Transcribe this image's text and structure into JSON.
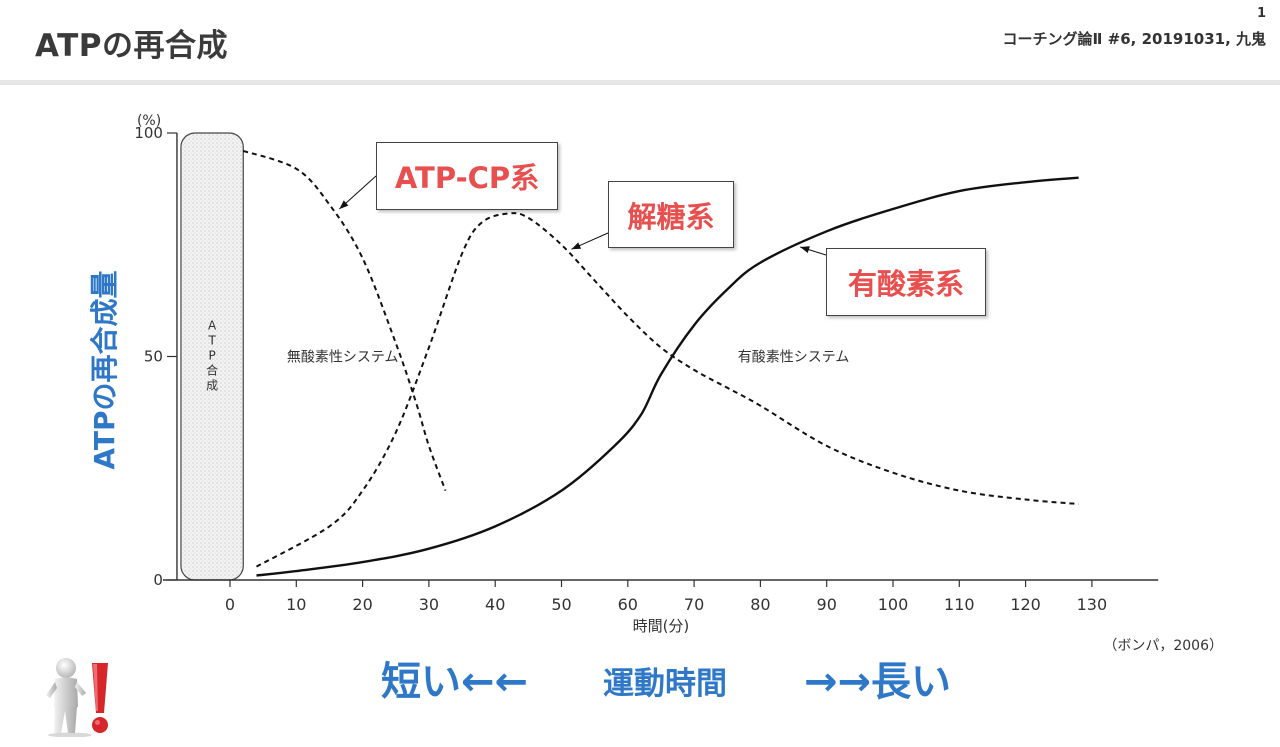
{
  "header": {
    "title": "ATPの再合成",
    "page_number": "1",
    "course_info": "コーチング論Ⅱ #6, 20191031, 九鬼"
  },
  "y_axis_title": "ATPの再合成量",
  "callouts": {
    "atp_cp": "ATP-CP系",
    "glycolysis": "解糖系",
    "aerobic": "有酸素系"
  },
  "citation": "（ボンパ，2006）",
  "bottom": {
    "short": "短い←←",
    "exercise_time": "運動時間",
    "long": "→→長い"
  },
  "colors": {
    "accent_blue": "#2f78c8",
    "callout_red": "#e8504f"
  },
  "chart_data": {
    "type": "line",
    "xlabel": "時間(分)",
    "ylabel": "(%)",
    "xlim": [
      -8,
      140
    ],
    "ylim": [
      0,
      100
    ],
    "x_ticks": [
      0,
      10,
      20,
      30,
      40,
      50,
      60,
      70,
      80,
      90,
      100,
      110,
      120,
      130
    ],
    "y_ticks": [
      0,
      50,
      100
    ],
    "atp_band_label": "ATP合成",
    "annotations": {
      "anaerobic": "無酸素性システム",
      "aerobic": "有酸素性システム"
    },
    "series": [
      {
        "key": "atp_cp",
        "style": "dashed",
        "x": [
          2,
          10,
          15,
          20,
          25,
          28,
          30,
          32.5
        ],
        "y": [
          96,
          92,
          84,
          72,
          53,
          40,
          30,
          20
        ]
      },
      {
        "key": "glycolysis",
        "style": "dashed",
        "x": [
          4,
          15,
          20,
          25,
          30,
          35,
          38,
          42,
          45,
          50,
          55,
          60,
          65,
          70,
          75,
          80,
          90,
          100,
          110,
          120,
          128
        ],
        "y": [
          3,
          12,
          20,
          33,
          52,
          73,
          80,
          82,
          81,
          75,
          67,
          59,
          52,
          47,
          43,
          39,
          30,
          24,
          20,
          18,
          17
        ]
      },
      {
        "key": "aerobic",
        "style": "solid",
        "x": [
          4,
          10,
          20,
          30,
          40,
          50,
          58,
          62,
          65,
          70,
          75,
          80,
          90,
          100,
          110,
          120,
          128
        ],
        "y": [
          1,
          2,
          4,
          7,
          12,
          20,
          30,
          37,
          46,
          57,
          65,
          71,
          78,
          83,
          87,
          89,
          90
        ]
      }
    ]
  }
}
